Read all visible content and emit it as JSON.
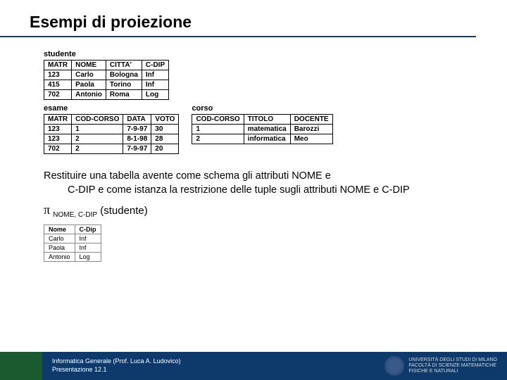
{
  "title": "Esempi di proiezione",
  "tables": {
    "studente": {
      "label": "studente",
      "columns": [
        "MATR",
        "NOME",
        "CITTA'",
        "C-DIP"
      ],
      "rows": [
        [
          "123",
          "Carlo",
          "Bologna",
          "Inf"
        ],
        [
          "415",
          "Paola",
          "Torino",
          "Inf"
        ],
        [
          "702",
          "Antonio",
          "Roma",
          "Log"
        ]
      ]
    },
    "esame": {
      "label": "esame",
      "columns": [
        "MATR",
        "COD-CORSO",
        "DATA",
        "VOTO"
      ],
      "rows": [
        [
          "123",
          "1",
          "7-9-97",
          "30"
        ],
        [
          "123",
          "2",
          "8-1-98",
          "28"
        ],
        [
          "702",
          "2",
          "7-9-97",
          "20"
        ]
      ]
    },
    "corso": {
      "label": "corso",
      "columns": [
        "COD-CORSO",
        "TITOLO",
        "DOCENTE"
      ],
      "rows": [
        [
          "1",
          "matematica",
          "Barozzi"
        ],
        [
          "2",
          "informatica",
          "Meo"
        ]
      ]
    },
    "result": {
      "columns": [
        "Nome",
        "C-Dip"
      ],
      "rows": [
        [
          "Carlo",
          "Inf"
        ],
        [
          "Paola",
          "Inf"
        ],
        [
          "Antonio",
          "Log"
        ]
      ]
    }
  },
  "body": {
    "line1": "Restituire una tabella avente come schema gli attributi NOME e",
    "line2": "C-DIP e come istanza la restrizione delle tuple sugli attributi NOME e C-DIP"
  },
  "formula": {
    "sub": "NOME, C-DIP",
    "arg": "(studente)"
  },
  "footer": {
    "line1": "Informatica Generale (Prof. Luca A. Ludovico)",
    "line2": "Presentazione 12.1",
    "uni1": "UNIVERSITÀ DEGLI STUDI DI MILANO",
    "uni2": "FACOLTÀ DI SCIENZE MATEMATICHE",
    "uni3": "FISICHE E NATURALI"
  }
}
